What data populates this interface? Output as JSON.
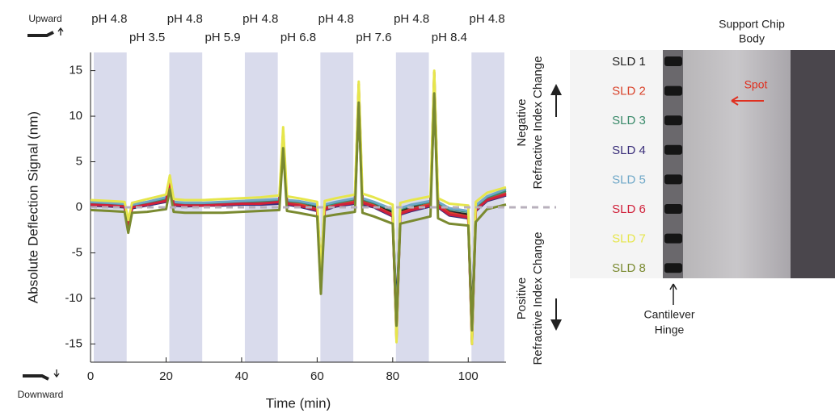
{
  "chart_data": {
    "type": "line",
    "x_label": "Time (min)",
    "y_label": "Absolute Deflection Signal (nm)",
    "xlim": [
      0,
      110
    ],
    "xticks": [
      0,
      20,
      40,
      60,
      80,
      100
    ],
    "ylim": [
      -17,
      17
    ],
    "yticks": [
      -15,
      -10,
      -5,
      0,
      5,
      10,
      15
    ],
    "reference_line": 0,
    "band_color": "#d9dbec",
    "bands": [
      {
        "label": "pH 4.8",
        "start": 0,
        "end": 10,
        "shaded": true
      },
      {
        "label": "pH 3.5",
        "start": 10,
        "end": 20,
        "shaded": false
      },
      {
        "label": "pH 4.8",
        "start": 20,
        "end": 30,
        "shaded": true
      },
      {
        "label": "pH 5.9",
        "start": 30,
        "end": 40,
        "shaded": false
      },
      {
        "label": "pH 4.8",
        "start": 40,
        "end": 50,
        "shaded": true
      },
      {
        "label": "pH 6.8",
        "start": 50,
        "end": 60,
        "shaded": false
      },
      {
        "label": "pH 4.8",
        "start": 60,
        "end": 70,
        "shaded": true
      },
      {
        "label": "pH 7.6",
        "start": 70,
        "end": 80,
        "shaded": false
      },
      {
        "label": "pH 4.8",
        "start": 80,
        "end": 90,
        "shaded": true
      },
      {
        "label": "pH 8.4",
        "start": 90,
        "end": 100,
        "shaded": false
      },
      {
        "label": "pH 4.8",
        "start": 100,
        "end": 110,
        "shaded": true
      }
    ],
    "x": [
      0,
      5,
      9,
      10,
      11,
      15,
      20,
      21,
      22,
      25,
      30,
      35,
      40,
      45,
      50,
      51,
      52,
      55,
      60,
      61,
      62,
      65,
      70,
      71,
      72,
      75,
      80,
      81,
      82,
      85,
      90,
      91,
      92,
      95,
      100,
      101,
      102,
      105,
      110
    ],
    "series": [
      {
        "name": "SLD 1",
        "color": "#222222",
        "values": [
          0.3,
          0.2,
          0.2,
          -1.5,
          0.0,
          0.3,
          0.8,
          2.5,
          0.3,
          0.2,
          0.3,
          0.3,
          0.4,
          0.5,
          0.6,
          7.0,
          0.5,
          0.3,
          0.0,
          -7.0,
          0.0,
          0.4,
          0.6,
          11.0,
          0.7,
          0.3,
          -0.5,
          -12.0,
          -0.4,
          0.0,
          0.3,
          12.0,
          0.2,
          -0.5,
          -0.8,
          -13.0,
          0.0,
          1.0,
          1.5
        ]
      },
      {
        "name": "SLD 2",
        "color": "#d9442c",
        "values": [
          0.4,
          0.3,
          0.2,
          -2.0,
          0.1,
          0.4,
          0.9,
          3.0,
          0.4,
          0.3,
          0.3,
          0.4,
          0.5,
          0.5,
          0.7,
          8.0,
          0.5,
          0.4,
          -0.2,
          -8.5,
          -0.1,
          0.3,
          0.7,
          13.0,
          0.6,
          0.2,
          -0.8,
          -14.0,
          -0.6,
          -0.2,
          0.4,
          14.0,
          0.3,
          -0.6,
          -1.0,
          -14.5,
          -0.2,
          0.9,
          1.6
        ]
      },
      {
        "name": "SLD 3",
        "color": "#3a8a6a",
        "values": [
          0.5,
          0.4,
          0.3,
          -1.8,
          0.2,
          0.5,
          1.0,
          2.8,
          0.5,
          0.4,
          0.4,
          0.5,
          0.6,
          0.7,
          0.8,
          7.5,
          0.7,
          0.6,
          0.2,
          -8.0,
          0.2,
          0.5,
          0.9,
          12.0,
          0.9,
          0.5,
          -0.3,
          -13.0,
          -0.2,
          0.2,
          0.6,
          13.0,
          0.5,
          -0.2,
          -0.5,
          -14.0,
          0.1,
          1.1,
          1.8
        ]
      },
      {
        "name": "SLD 4",
        "color": "#3b2f7a",
        "values": [
          0.2,
          0.1,
          0.0,
          -2.2,
          -0.1,
          0.2,
          0.6,
          2.6,
          0.2,
          0.1,
          0.2,
          0.2,
          0.3,
          0.3,
          0.4,
          7.8,
          0.3,
          0.1,
          -0.4,
          -8.8,
          -0.3,
          0.1,
          0.4,
          12.5,
          0.3,
          0.0,
          -1.0,
          -13.5,
          -0.8,
          -0.4,
          0.1,
          13.5,
          0.0,
          -0.9,
          -1.2,
          -14.0,
          -0.4,
          0.7,
          1.3
        ]
      },
      {
        "name": "SLD 5",
        "color": "#6fa8c8",
        "values": [
          0.6,
          0.5,
          0.4,
          -1.6,
          0.3,
          0.6,
          1.1,
          3.2,
          0.6,
          0.5,
          0.5,
          0.6,
          0.7,
          0.8,
          0.9,
          8.2,
          0.8,
          0.7,
          0.3,
          -7.5,
          0.3,
          0.6,
          1.0,
          13.2,
          1.0,
          0.6,
          -0.2,
          -14.2,
          -0.1,
          0.3,
          0.7,
          14.5,
          0.6,
          -0.1,
          -0.4,
          -14.8,
          0.2,
          1.2,
          2.0
        ]
      },
      {
        "name": "SLD 6",
        "color": "#d0203a",
        "values": [
          0.3,
          0.2,
          0.1,
          -2.1,
          0.0,
          0.3,
          0.7,
          2.9,
          0.3,
          0.2,
          0.2,
          0.3,
          0.4,
          0.4,
          0.6,
          8.4,
          0.4,
          0.2,
          -0.3,
          -9.0,
          -0.2,
          0.2,
          0.5,
          13.5,
          0.5,
          0.1,
          -0.9,
          -14.5,
          -0.7,
          -0.3,
          0.2,
          14.8,
          0.1,
          -0.8,
          -1.1,
          -15.0,
          -0.3,
          0.8,
          1.4
        ]
      },
      {
        "name": "SLD 7",
        "color": "#e6e64c",
        "values": [
          0.8,
          0.7,
          0.6,
          -1.4,
          0.5,
          0.9,
          1.4,
          3.5,
          0.9,
          0.8,
          0.8,
          0.9,
          1.0,
          1.1,
          1.3,
          8.8,
          1.2,
          1.0,
          0.6,
          -7.0,
          0.7,
          1.0,
          1.4,
          13.8,
          1.5,
          1.1,
          0.3,
          -14.8,
          0.5,
          0.8,
          1.2,
          15.0,
          1.0,
          0.4,
          0.2,
          -15.0,
          0.6,
          1.6,
          2.2
        ]
      },
      {
        "name": "SLD 8",
        "color": "#7a8a30",
        "values": [
          -0.3,
          -0.4,
          -0.5,
          -2.8,
          -0.6,
          -0.5,
          -0.2,
          2.0,
          -0.5,
          -0.6,
          -0.6,
          -0.6,
          -0.5,
          -0.4,
          -0.3,
          6.5,
          -0.4,
          -0.6,
          -1.0,
          -9.5,
          -1.0,
          -0.8,
          -0.5,
          11.5,
          -0.6,
          -1.0,
          -1.8,
          -13.0,
          -1.8,
          -1.5,
          -1.0,
          12.5,
          -1.2,
          -1.8,
          -2.0,
          -13.5,
          -1.6,
          -0.2,
          0.3
        ]
      }
    ]
  },
  "direction_labels": {
    "up": "Upward",
    "down": "Downward"
  },
  "side_labels": {
    "negative": [
      "Negative",
      "Refractive Index Change"
    ],
    "positive": [
      "Positive",
      "Refractive Index Change"
    ]
  },
  "image_panel": {
    "chip": [
      "Support Chip",
      "Body"
    ],
    "hinge": [
      "Cantilever",
      "Hinge"
    ],
    "spot": "Spot"
  }
}
